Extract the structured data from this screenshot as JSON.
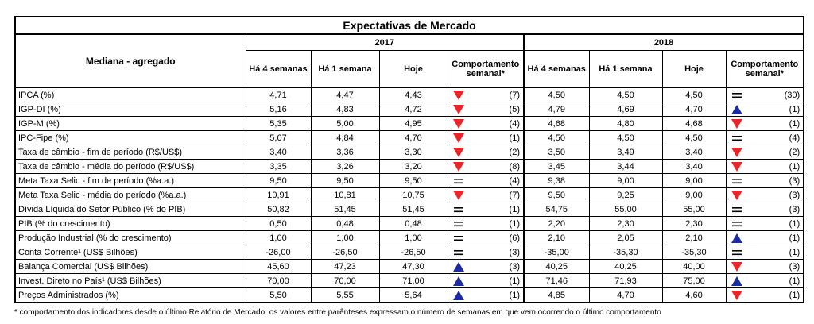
{
  "title": "Expectativas de Mercado",
  "row_header": "Mediana - agregado",
  "years": [
    "2017",
    "2018"
  ],
  "col_headers": {
    "weeks4": "Há 4 semanas",
    "week1": "Há 1 semana",
    "today": "Hoje",
    "behavior": "Comportamento semanal*"
  },
  "colors": {
    "down": "#e8262a",
    "up": "#1a2ba8",
    "neutral": "#000000"
  },
  "rows": [
    {
      "label": "IPCA (%)",
      "y2017": {
        "w4": "4,71",
        "w1": "4,47",
        "today": "4,43",
        "trend": "down",
        "count": "(7)"
      },
      "y2018": {
        "w4": "4,50",
        "w1": "4,50",
        "today": "4,50",
        "trend": "equal",
        "count": "(30)"
      }
    },
    {
      "label": "IGP-DI (%)",
      "y2017": {
        "w4": "5,16",
        "w1": "4,83",
        "today": "4,72",
        "trend": "down",
        "count": "(5)"
      },
      "y2018": {
        "w4": "4,79",
        "w1": "4,69",
        "today": "4,70",
        "trend": "up",
        "count": "(1)"
      }
    },
    {
      "label": "IGP-M (%)",
      "y2017": {
        "w4": "5,35",
        "w1": "5,00",
        "today": "4,95",
        "trend": "down",
        "count": "(4)"
      },
      "y2018": {
        "w4": "4,68",
        "w1": "4,80",
        "today": "4,68",
        "trend": "down",
        "count": "(1)"
      }
    },
    {
      "label": "IPC-Fipe (%)",
      "y2017": {
        "w4": "5,07",
        "w1": "4,84",
        "today": "4,70",
        "trend": "down",
        "count": "(1)"
      },
      "y2018": {
        "w4": "4,50",
        "w1": "4,50",
        "today": "4,50",
        "trend": "equal",
        "count": "(4)"
      }
    },
    {
      "label": "Taxa de câmbio - fim de período (R$/US$)",
      "y2017": {
        "w4": "3,40",
        "w1": "3,36",
        "today": "3,30",
        "trend": "down",
        "count": "(2)"
      },
      "y2018": {
        "w4": "3,50",
        "w1": "3,49",
        "today": "3,40",
        "trend": "down",
        "count": "(2)"
      }
    },
    {
      "label": "Taxa de câmbio - média do período (R$/US$)",
      "y2017": {
        "w4": "3,35",
        "w1": "3,26",
        "today": "3,20",
        "trend": "down",
        "count": "(8)"
      },
      "y2018": {
        "w4": "3,45",
        "w1": "3,44",
        "today": "3,40",
        "trend": "down",
        "count": "(1)"
      }
    },
    {
      "label": "Meta Taxa Selic - fim de período (%a.a.)",
      "y2017": {
        "w4": "9,50",
        "w1": "9,50",
        "today": "9,50",
        "trend": "equal",
        "count": "(4)"
      },
      "y2018": {
        "w4": "9,38",
        "w1": "9,00",
        "today": "9,00",
        "trend": "equal",
        "count": "(3)"
      }
    },
    {
      "label": "Meta Taxa Selic - média do período (%a.a.)",
      "y2017": {
        "w4": "10,91",
        "w1": "10,81",
        "today": "10,75",
        "trend": "down",
        "count": "(7)"
      },
      "y2018": {
        "w4": "9,50",
        "w1": "9,25",
        "today": "9,00",
        "trend": "down",
        "count": "(3)"
      }
    },
    {
      "label": "Dívida Líquida do Setor Público (% do PIB)",
      "y2017": {
        "w4": "50,82",
        "w1": "51,45",
        "today": "51,45",
        "trend": "equal",
        "count": "(1)"
      },
      "y2018": {
        "w4": "54,75",
        "w1": "55,00",
        "today": "55,00",
        "trend": "equal",
        "count": "(3)"
      }
    },
    {
      "label": "PIB (% do crescimento)",
      "y2017": {
        "w4": "0,50",
        "w1": "0,48",
        "today": "0,48",
        "trend": "equal",
        "count": "(1)"
      },
      "y2018": {
        "w4": "2,20",
        "w1": "2,30",
        "today": "2,30",
        "trend": "equal",
        "count": "(1)"
      }
    },
    {
      "label": "Produção Industrial (% do crescimento)",
      "y2017": {
        "w4": "1,00",
        "w1": "1,00",
        "today": "1,00",
        "trend": "equal",
        "count": "(6)"
      },
      "y2018": {
        "w4": "2,10",
        "w1": "2,05",
        "today": "2,10",
        "trend": "up",
        "count": "(1)"
      }
    },
    {
      "label": "Conta Corrente¹ (US$ Bilhões)",
      "y2017": {
        "w4": "-26,00",
        "w1": "-26,50",
        "today": "-26,50",
        "trend": "equal",
        "count": "(3)"
      },
      "y2018": {
        "w4": "-35,00",
        "w1": "-35,30",
        "today": "-35,30",
        "trend": "equal",
        "count": "(1)"
      }
    },
    {
      "label": "Balança Comercial (US$ Bilhões)",
      "y2017": {
        "w4": "45,60",
        "w1": "47,23",
        "today": "47,30",
        "trend": "up",
        "count": "(3)"
      },
      "y2018": {
        "w4": "40,25",
        "w1": "40,25",
        "today": "40,00",
        "trend": "down",
        "count": "(3)"
      }
    },
    {
      "label": "Invest. Direto no País¹ (US$ Bilhões)",
      "y2017": {
        "w4": "70,00",
        "w1": "70,00",
        "today": "71,00",
        "trend": "up",
        "count": "(1)"
      },
      "y2018": {
        "w4": "71,46",
        "w1": "71,93",
        "today": "75,00",
        "trend": "up",
        "count": "(1)"
      }
    },
    {
      "label": "Preços Administrados (%)",
      "y2017": {
        "w4": "5,50",
        "w1": "5,55",
        "today": "5,64",
        "trend": "up",
        "count": "(1)"
      },
      "y2018": {
        "w4": "4,85",
        "w1": "4,70",
        "today": "4,60",
        "trend": "down",
        "count": "(1)"
      }
    }
  ],
  "footnote": "* comportamento dos indicadores desde o último Relatório de Mercado; os valores entre parênteses expressam o número de semanas em que vem ocorrendo o último comportamento"
}
